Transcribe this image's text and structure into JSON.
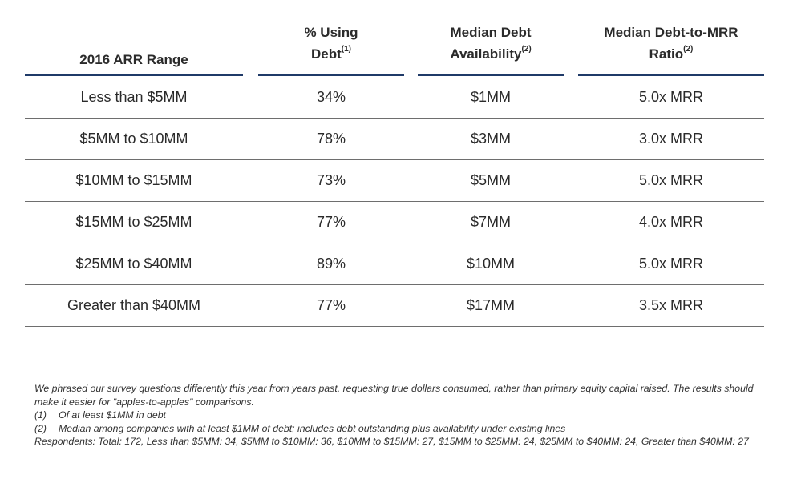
{
  "table": {
    "headers": [
      {
        "text": "2016 ARR Range",
        "line1": "",
        "line2": "2016 ARR Range",
        "sup": ""
      },
      {
        "text": "% Using Debt(1)",
        "line1": "% Using",
        "line2": "Debt",
        "sup": "(1)"
      },
      {
        "text": "Median Debt Availability(2)",
        "line1": "Median Debt",
        "line2": "Availability",
        "sup": "(2)"
      },
      {
        "text": "Median Debt-to-MRR Ratio(2)",
        "line1": "Median Debt-to-MRR",
        "line2": "Ratio",
        "sup": "(2)"
      }
    ],
    "rows": [
      [
        "Less than $5MM",
        "34%",
        "$1MM",
        "5.0x MRR"
      ],
      [
        "$5MM to $10MM",
        "78%",
        "$3MM",
        "3.0x MRR"
      ],
      [
        "$10MM to $15MM",
        "73%",
        "$5MM",
        "5.0x MRR"
      ],
      [
        "$15MM to $25MM",
        "77%",
        "$7MM",
        "4.0x MRR"
      ],
      [
        "$25MM to $40MM",
        "89%",
        "$10MM",
        "5.0x MRR"
      ],
      [
        "Greater than $40MM",
        "77%",
        "$17MM",
        "3.5x MRR"
      ]
    ]
  },
  "notes": {
    "intro": "We phrased our survey questions differently this year from years past, requesting true dollars consumed, rather than primary equity capital raised.  The results should make it easier for \"apples-to-apples\" comparisons.",
    "footnotes": [
      {
        "num": "(1)",
        "text": "Of at least $1MM in debt"
      },
      {
        "num": "(2)",
        "text": "Median among companies with at least $1MM of debt; includes debt outstanding plus availability under existing lines"
      }
    ],
    "respondents": "Respondents: Total: 172, Less than $5MM: 34, $5MM to $10MM: 36, $10MM to $15MM: 27, $15MM to $25MM: 24, $25MM to $40MM: 24, Greater than $40MM: 27"
  },
  "colors": {
    "header_rule": "#1f3a68",
    "row_rule": "#6e6e6e",
    "text": "#2a2a2a"
  }
}
